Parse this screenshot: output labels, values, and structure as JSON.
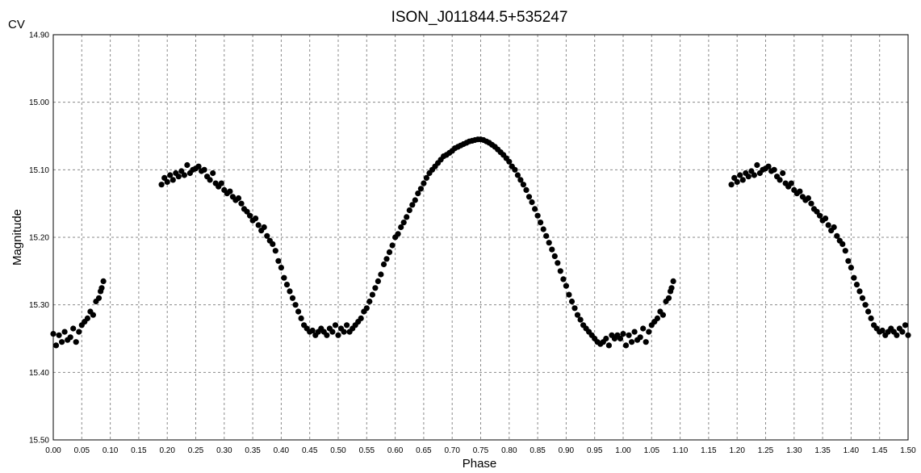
{
  "chart_data": {
    "type": "scatter",
    "title": "ISON_J011844.5+535247",
    "corner_label": "CV",
    "xlabel": "Phase",
    "ylabel": "Magnitude",
    "xlim": [
      0.0,
      1.5
    ],
    "ylim": [
      14.9,
      15.5
    ],
    "y_inverted": true,
    "grid": true,
    "x_ticks": [
      "0.00",
      "0.05",
      "0.10",
      "0.15",
      "0.20",
      "0.25",
      "0.30",
      "0.35",
      "0.40",
      "0.45",
      "0.50",
      "0.55",
      "0.60",
      "0.65",
      "0.70",
      "0.75",
      "0.80",
      "0.85",
      "0.90",
      "0.95",
      "1.00",
      "1.05",
      "1.10",
      "1.15",
      "1.20",
      "1.25",
      "1.30",
      "1.35",
      "1.40",
      "1.45",
      "1.50"
    ],
    "y_ticks": [
      "14.90",
      "15.00",
      "15.10",
      "15.20",
      "15.30",
      "15.40",
      "15.50"
    ],
    "marker_color": "#000000",
    "repeat_offset": 1.0,
    "points": [
      [
        0.0,
        15.343
      ],
      [
        0.005,
        15.36
      ],
      [
        0.01,
        15.345
      ],
      [
        0.015,
        15.355
      ],
      [
        0.02,
        15.34
      ],
      [
        0.025,
        15.352
      ],
      [
        0.03,
        15.348
      ],
      [
        0.035,
        15.335
      ],
      [
        0.04,
        15.355
      ],
      [
        0.045,
        15.34
      ],
      [
        0.05,
        15.33
      ],
      [
        0.055,
        15.325
      ],
      [
        0.06,
        15.32
      ],
      [
        0.065,
        15.31
      ],
      [
        0.07,
        15.315
      ],
      [
        0.075,
        15.295
      ],
      [
        0.08,
        15.29
      ],
      [
        0.083,
        15.28
      ],
      [
        0.085,
        15.275
      ],
      [
        0.088,
        15.265
      ],
      [
        0.19,
        15.122
      ],
      [
        0.195,
        15.112
      ],
      [
        0.2,
        15.118
      ],
      [
        0.205,
        15.108
      ],
      [
        0.21,
        15.115
      ],
      [
        0.215,
        15.105
      ],
      [
        0.22,
        15.11
      ],
      [
        0.225,
        15.102
      ],
      [
        0.23,
        15.108
      ],
      [
        0.235,
        15.093
      ],
      [
        0.24,
        15.105
      ],
      [
        0.245,
        15.1
      ],
      [
        0.25,
        15.098
      ],
      [
        0.255,
        15.095
      ],
      [
        0.26,
        15.102
      ],
      [
        0.265,
        15.1
      ],
      [
        0.27,
        15.11
      ],
      [
        0.275,
        15.115
      ],
      [
        0.28,
        15.105
      ],
      [
        0.285,
        15.12
      ],
      [
        0.29,
        15.125
      ],
      [
        0.295,
        15.12
      ],
      [
        0.3,
        15.13
      ],
      [
        0.305,
        15.135
      ],
      [
        0.31,
        15.132
      ],
      [
        0.315,
        15.14
      ],
      [
        0.32,
        15.145
      ],
      [
        0.325,
        15.142
      ],
      [
        0.33,
        15.15
      ],
      [
        0.335,
        15.158
      ],
      [
        0.34,
        15.162
      ],
      [
        0.345,
        15.168
      ],
      [
        0.35,
        15.175
      ],
      [
        0.355,
        15.172
      ],
      [
        0.36,
        15.182
      ],
      [
        0.365,
        15.19
      ],
      [
        0.37,
        15.185
      ],
      [
        0.375,
        15.198
      ],
      [
        0.38,
        15.205
      ],
      [
        0.385,
        15.21
      ],
      [
        0.39,
        15.22
      ],
      [
        0.395,
        15.235
      ],
      [
        0.4,
        15.245
      ],
      [
        0.405,
        15.26
      ],
      [
        0.41,
        15.27
      ],
      [
        0.415,
        15.28
      ],
      [
        0.42,
        15.29
      ],
      [
        0.425,
        15.3
      ],
      [
        0.43,
        15.31
      ],
      [
        0.435,
        15.32
      ],
      [
        0.44,
        15.33
      ],
      [
        0.445,
        15.335
      ],
      [
        0.45,
        15.34
      ],
      [
        0.455,
        15.338
      ],
      [
        0.46,
        15.345
      ],
      [
        0.465,
        15.34
      ],
      [
        0.47,
        15.335
      ],
      [
        0.475,
        15.34
      ],
      [
        0.48,
        15.345
      ],
      [
        0.485,
        15.335
      ],
      [
        0.49,
        15.34
      ],
      [
        0.495,
        15.33
      ],
      [
        0.5,
        15.345
      ],
      [
        0.505,
        15.335
      ],
      [
        0.51,
        15.34
      ],
      [
        0.515,
        15.33
      ],
      [
        0.52,
        15.34
      ],
      [
        0.525,
        15.335
      ],
      [
        0.53,
        15.33
      ],
      [
        0.535,
        15.325
      ],
      [
        0.54,
        15.32
      ],
      [
        0.545,
        15.31
      ],
      [
        0.55,
        15.305
      ],
      [
        0.555,
        15.295
      ],
      [
        0.56,
        15.285
      ],
      [
        0.565,
        15.275
      ],
      [
        0.57,
        15.265
      ],
      [
        0.575,
        15.255
      ],
      [
        0.58,
        15.24
      ],
      [
        0.585,
        15.232
      ],
      [
        0.59,
        15.222
      ],
      [
        0.595,
        15.212
      ],
      [
        0.6,
        15.2
      ],
      [
        0.605,
        15.195
      ],
      [
        0.61,
        15.185
      ],
      [
        0.615,
        15.178
      ],
      [
        0.62,
        15.17
      ],
      [
        0.625,
        15.16
      ],
      [
        0.63,
        15.152
      ],
      [
        0.635,
        15.145
      ],
      [
        0.64,
        15.135
      ],
      [
        0.645,
        15.128
      ],
      [
        0.65,
        15.12
      ],
      [
        0.655,
        15.112
      ],
      [
        0.66,
        15.105
      ],
      [
        0.665,
        15.1
      ],
      [
        0.67,
        15.095
      ],
      [
        0.675,
        15.09
      ],
      [
        0.68,
        15.085
      ],
      [
        0.685,
        15.08
      ],
      [
        0.69,
        15.078
      ],
      [
        0.695,
        15.075
      ],
      [
        0.7,
        15.072
      ],
      [
        0.705,
        15.068
      ],
      [
        0.71,
        15.066
      ],
      [
        0.715,
        15.064
      ],
      [
        0.72,
        15.062
      ],
      [
        0.725,
        15.06
      ],
      [
        0.73,
        15.058
      ],
      [
        0.735,
        15.057
      ],
      [
        0.74,
        15.056
      ],
      [
        0.745,
        15.055
      ],
      [
        0.75,
        15.055
      ],
      [
        0.755,
        15.056
      ],
      [
        0.76,
        15.058
      ],
      [
        0.765,
        15.06
      ],
      [
        0.77,
        15.063
      ],
      [
        0.775,
        15.066
      ],
      [
        0.78,
        15.07
      ],
      [
        0.785,
        15.074
      ],
      [
        0.79,
        15.078
      ],
      [
        0.795,
        15.083
      ],
      [
        0.8,
        15.088
      ],
      [
        0.805,
        15.095
      ],
      [
        0.81,
        15.1
      ],
      [
        0.815,
        15.108
      ],
      [
        0.82,
        15.115
      ],
      [
        0.825,
        15.122
      ],
      [
        0.83,
        15.13
      ],
      [
        0.835,
        15.14
      ],
      [
        0.84,
        15.148
      ],
      [
        0.845,
        15.158
      ],
      [
        0.85,
        15.168
      ],
      [
        0.855,
        15.178
      ],
      [
        0.86,
        15.188
      ],
      [
        0.865,
        15.198
      ],
      [
        0.87,
        15.208
      ],
      [
        0.875,
        15.218
      ],
      [
        0.88,
        15.228
      ],
      [
        0.885,
        15.238
      ],
      [
        0.89,
        15.25
      ],
      [
        0.895,
        15.262
      ],
      [
        0.9,
        15.272
      ],
      [
        0.905,
        15.285
      ],
      [
        0.91,
        15.295
      ],
      [
        0.915,
        15.305
      ],
      [
        0.92,
        15.315
      ],
      [
        0.925,
        15.322
      ],
      [
        0.93,
        15.33
      ],
      [
        0.935,
        15.335
      ],
      [
        0.94,
        15.34
      ],
      [
        0.945,
        15.345
      ],
      [
        0.95,
        15.35
      ],
      [
        0.955,
        15.355
      ],
      [
        0.96,
        15.358
      ],
      [
        0.965,
        15.355
      ],
      [
        0.97,
        15.35
      ],
      [
        0.975,
        15.36
      ],
      [
        0.98,
        15.345
      ],
      [
        0.985,
        15.35
      ],
      [
        0.99,
        15.345
      ],
      [
        0.995,
        15.35
      ]
    ]
  }
}
